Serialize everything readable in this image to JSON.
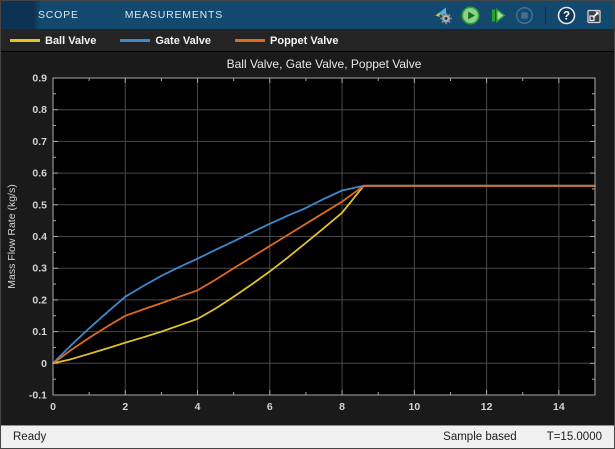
{
  "toolbar": {
    "tabs": [
      {
        "label": "SCOPE"
      },
      {
        "label": "MEASUREMENTS"
      }
    ],
    "buttons": [
      {
        "icon": "simulation-settings"
      },
      {
        "icon": "run"
      },
      {
        "icon": "step-forward"
      },
      {
        "icon": "stop",
        "disabled": true
      },
      {
        "icon": "help"
      },
      {
        "icon": "pop-out"
      }
    ]
  },
  "legend": {
    "items": [
      {
        "label": "Ball Valve",
        "color": "#e3c229"
      },
      {
        "label": "Gate Valve",
        "color": "#3d89cf"
      },
      {
        "label": "Poppet Valve",
        "color": "#dd6b1f"
      }
    ]
  },
  "chart_data": {
    "type": "line",
    "title": "Ball Valve, Gate Valve, Poppet Valve",
    "xlabel": "",
    "ylabel": "Mass Flow Rate (kg/s)",
    "xlim": [
      0,
      15
    ],
    "ylim": [
      -0.1,
      0.9
    ],
    "x_ticks": [
      0,
      2,
      4,
      6,
      8,
      10,
      12,
      14
    ],
    "x_minor_ticks": [
      1,
      3,
      5,
      7,
      9,
      11,
      13,
      15
    ],
    "y_ticks": [
      -0.1,
      0,
      0.1,
      0.2,
      0.3,
      0.4,
      0.5,
      0.6,
      0.7,
      0.8,
      0.9
    ],
    "y_minor_ticks": [
      -0.05,
      0.05,
      0.15,
      0.25,
      0.35,
      0.45,
      0.55,
      0.65,
      0.75,
      0.85
    ],
    "grid": true,
    "legend_position": "top-strip",
    "plot_bg": "#000000",
    "grid_color": "#4a4a4a",
    "axis_color": "#a8a8a8",
    "tick_label_color": "#d4d4d4",
    "title_color": "#e8e8e8",
    "x": [
      0,
      0.5,
      1,
      1.5,
      2,
      2.5,
      3,
      3.5,
      4,
      4.5,
      5,
      5.5,
      6,
      6.5,
      7,
      7.5,
      8,
      8.6,
      9,
      10,
      11,
      12,
      13,
      14,
      15
    ],
    "series": [
      {
        "name": "Ball Valve",
        "color": "#e3c229",
        "values": [
          0,
          0.013,
          0.03,
          0.047,
          0.065,
          0.082,
          0.1,
          0.12,
          0.14,
          0.173,
          0.21,
          0.249,
          0.29,
          0.334,
          0.38,
          0.427,
          0.475,
          0.56,
          0.56,
          0.56,
          0.56,
          0.56,
          0.56,
          0.56,
          0.56
        ]
      },
      {
        "name": "Gate Valve",
        "color": "#3d89cf",
        "values": [
          0,
          0.057,
          0.11,
          0.161,
          0.21,
          0.244,
          0.276,
          0.304,
          0.33,
          0.358,
          0.385,
          0.413,
          0.44,
          0.466,
          0.49,
          0.519,
          0.545,
          0.56,
          0.56,
          0.56,
          0.56,
          0.56,
          0.56,
          0.56,
          0.56
        ]
      },
      {
        "name": "Poppet Valve",
        "color": "#dd6b1f",
        "values": [
          0,
          0.042,
          0.08,
          0.116,
          0.15,
          0.17,
          0.19,
          0.21,
          0.23,
          0.264,
          0.3,
          0.335,
          0.37,
          0.405,
          0.44,
          0.475,
          0.51,
          0.56,
          0.56,
          0.56,
          0.56,
          0.56,
          0.56,
          0.56,
          0.56
        ]
      }
    ]
  },
  "status_bar": {
    "ready": "Ready",
    "sample_mode": "Sample based",
    "time": "T=15.0000"
  }
}
